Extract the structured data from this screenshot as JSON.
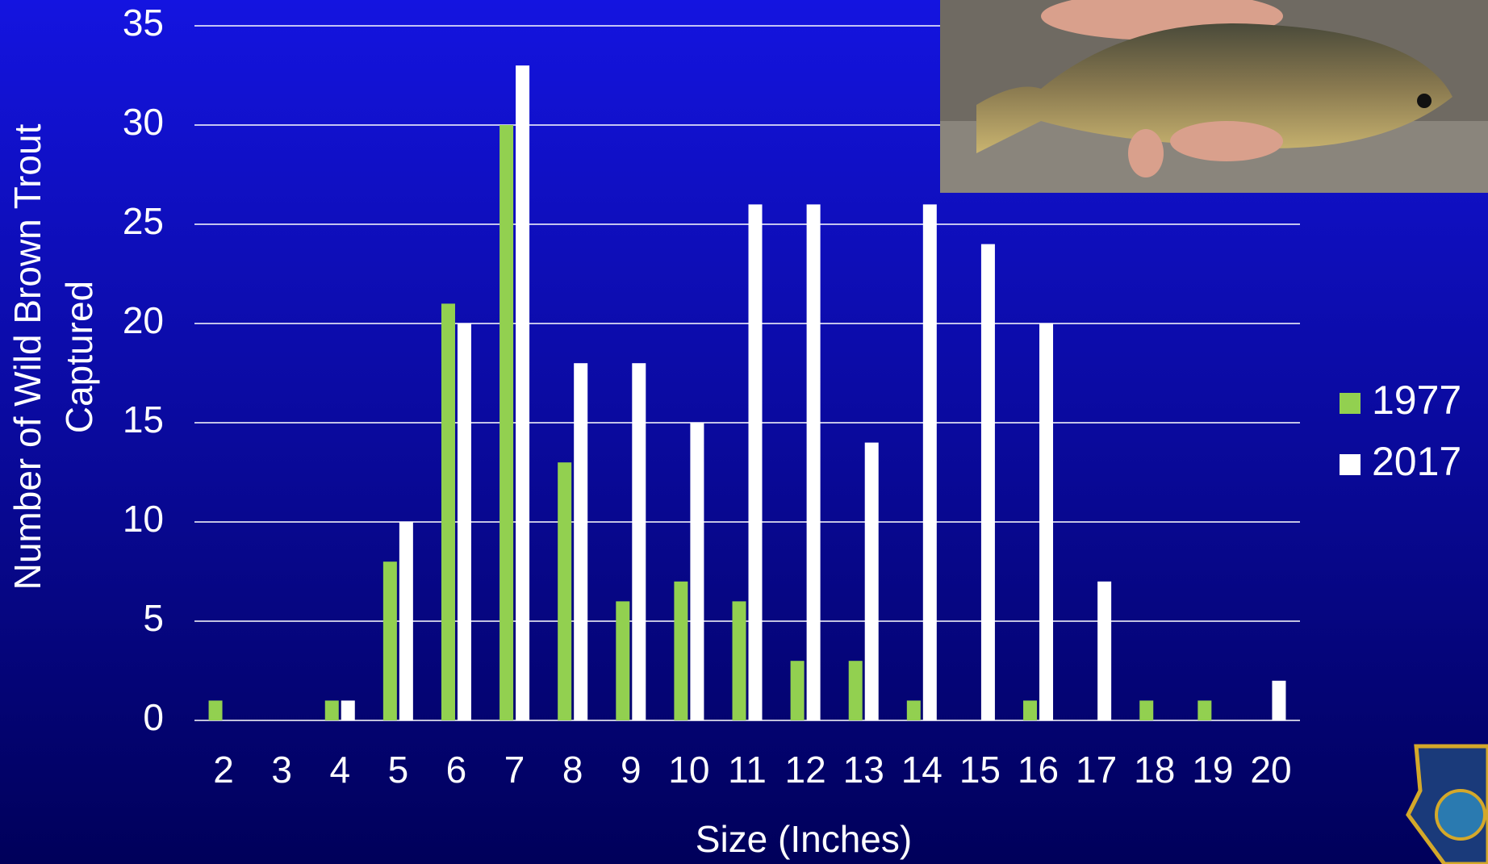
{
  "chart_data": {
    "type": "bar",
    "ylabel": [
      "Number of Wild Brown Trout",
      "Captured"
    ],
    "xlabel": "Size (Inches)",
    "categories": [
      "2",
      "3",
      "4",
      "5",
      "6",
      "7",
      "8",
      "9",
      "10",
      "11",
      "12",
      "13",
      "14",
      "15",
      "16",
      "17",
      "18",
      "19",
      "20"
    ],
    "series": [
      {
        "name": "1977",
        "color": "#92d050",
        "values": [
          1,
          0,
          1,
          8,
          21,
          30,
          13,
          6,
          7,
          6,
          3,
          3,
          1,
          0,
          1,
          0,
          1,
          1,
          0
        ]
      },
      {
        "name": "2017",
        "color": "#ffffff",
        "values": [
          0,
          0,
          1,
          10,
          20,
          33,
          18,
          18,
          15,
          26,
          26,
          14,
          26,
          24,
          20,
          7,
          0,
          0,
          2
        ]
      }
    ],
    "ylim": [
      0,
      35
    ],
    "yticks": [
      0,
      5,
      10,
      15,
      20,
      25,
      30,
      35
    ],
    "grid": true,
    "legend": "right"
  }
}
